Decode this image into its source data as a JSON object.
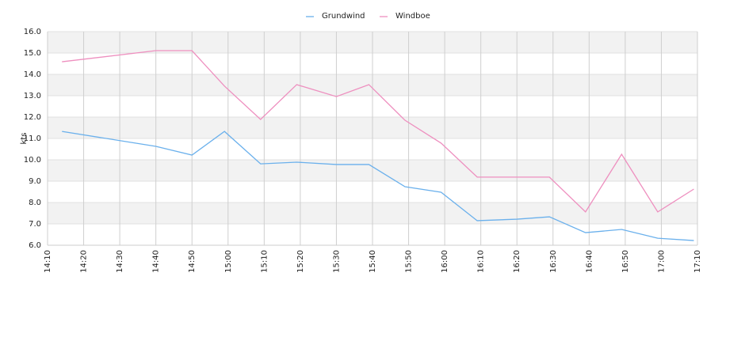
{
  "chart_data": {
    "type": "line",
    "y_label": "kts",
    "x": [
      "14:14",
      "14:40",
      "14:50",
      "14:59",
      "15:09",
      "15:19",
      "15:30",
      "15:39",
      "15:49",
      "15:59",
      "16:09",
      "16:20",
      "16:29",
      "16:39",
      "16:49",
      "16:59",
      "17:09"
    ],
    "series": [
      {
        "name": "Grundwind",
        "color": "#6ab0ec",
        "values": [
          11.33,
          10.63,
          10.22,
          11.33,
          9.81,
          9.89,
          9.78,
          9.78,
          8.74,
          8.48,
          7.15,
          7.22,
          7.33,
          6.59,
          6.74,
          6.33,
          6.22
        ]
      },
      {
        "name": "Windboe",
        "color": "#ee8fbf",
        "values": [
          14.59,
          15.11,
          15.11,
          13.45,
          11.89,
          13.52,
          12.96,
          13.52,
          11.85,
          10.78,
          9.19,
          9.19,
          9.19,
          7.56,
          10.26,
          7.56,
          8.63
        ]
      }
    ],
    "xlim": [
      "14:10",
      "17:10"
    ],
    "xticks": [
      "14:10",
      "14:20",
      "14:30",
      "14:40",
      "14:50",
      "15:00",
      "15:10",
      "15:20",
      "15:30",
      "15:40",
      "15:50",
      "16:00",
      "16:10",
      "16:20",
      "16:30",
      "16:40",
      "16:50",
      "17:00",
      "17:10"
    ],
    "ylim": [
      6,
      16
    ],
    "yticks": [
      {
        "value": 6,
        "label": "6.0"
      },
      {
        "value": 7,
        "label": "7.0"
      },
      {
        "value": 8,
        "label": "8.0"
      },
      {
        "value": 9,
        "label": "9.0"
      },
      {
        "value": 10,
        "label": "10.0"
      },
      {
        "value": 11,
        "label": "11.0"
      },
      {
        "value": 12,
        "label": "12.0"
      },
      {
        "value": 13,
        "label": "13.0"
      },
      {
        "value": 14,
        "label": "14.0"
      },
      {
        "value": 15,
        "label": "15.0"
      },
      {
        "value": 16,
        "label": "16.0"
      }
    ],
    "grid": true,
    "legend": "top"
  }
}
